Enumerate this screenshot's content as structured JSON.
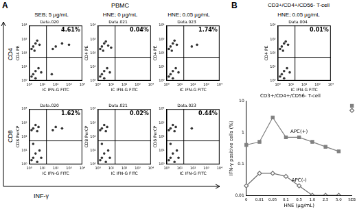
{
  "figure": {
    "panels": [
      {
        "label": "A",
        "title": "PBMC",
        "column_titles": [
          "SEB; 5 µg/mL",
          "HNE; 0 µg/mL",
          "HNE; 0.05 µg/mL"
        ],
        "row_labels": [
          "CD4",
          "CD8"
        ],
        "x_label": "INF-γ"
      },
      {
        "label": "B",
        "title": "CD3+/CD4+/CD56- T-cell",
        "column_titles": [
          "HNE; 0.05 µg/mL"
        ]
      }
    ]
  },
  "chart_data": [
    {
      "type": "scatter",
      "title": "Data.020",
      "x_label": "IC IFN-G FITC",
      "y_label": "CD4 PE",
      "log": true,
      "xlim": [
        1,
        10000
      ],
      "ylim": [
        1,
        10000
      ],
      "xticks": [
        {
          "value": 1,
          "label": "10⁰"
        },
        {
          "value": 10,
          "label": "10¹"
        },
        {
          "value": 100,
          "label": "10²"
        },
        {
          "value": 1000,
          "label": "10³"
        },
        {
          "value": 10000,
          "label": "10⁴"
        }
      ],
      "yticks": [
        {
          "value": 1,
          "label": "10⁰"
        },
        {
          "value": 10,
          "label": "10¹"
        },
        {
          "value": 100,
          "label": "10²"
        },
        {
          "value": 1000,
          "label": "10³"
        },
        {
          "value": 10000,
          "label": "10⁴"
        }
      ],
      "grid": false,
      "color": "#333333",
      "points": [
        [
          2,
          300
        ],
        [
          3,
          500
        ],
        [
          1.5,
          200
        ],
        [
          4,
          800
        ],
        [
          2.5,
          150
        ],
        [
          6,
          400
        ],
        [
          2,
          3
        ],
        [
          3,
          5
        ],
        [
          1.5,
          2
        ],
        [
          5,
          8
        ],
        [
          8,
          4
        ],
        [
          3,
          1.5
        ],
        [
          100,
          300
        ],
        [
          300,
          500
        ],
        [
          60,
          200
        ],
        [
          1000,
          400
        ],
        [
          50,
          3
        ]
      ],
      "gate": {
        "x": 20,
        "y": 50
      },
      "annotations": [
        "4.61%"
      ]
    },
    {
      "type": "scatter",
      "title": "Data.021",
      "x_label": "IC IFN-G FITC",
      "y_label": "CD4 PE",
      "log": true,
      "xlim": [
        1,
        10000
      ],
      "ylim": [
        1,
        10000
      ],
      "xticks": [
        {
          "value": 1,
          "label": "10⁰"
        },
        {
          "value": 10,
          "label": "10¹"
        },
        {
          "value": 100,
          "label": "10²"
        },
        {
          "value": 1000,
          "label": "10³"
        },
        {
          "value": 10000,
          "label": "10⁴"
        }
      ],
      "yticks": [
        {
          "value": 1,
          "label": "10⁰"
        },
        {
          "value": 10,
          "label": "10¹"
        },
        {
          "value": 100,
          "label": "10²"
        },
        {
          "value": 1000,
          "label": "10³"
        },
        {
          "value": 10000,
          "label": "10⁴"
        }
      ],
      "grid": false,
      "color": "#333333",
      "points": [
        [
          2,
          300
        ],
        [
          3,
          500
        ],
        [
          1.5,
          200
        ],
        [
          4,
          700
        ],
        [
          2.5,
          150
        ],
        [
          6,
          350
        ],
        [
          2,
          3
        ],
        [
          3,
          5
        ],
        [
          1.5,
          2
        ],
        [
          5,
          8
        ],
        [
          8,
          4
        ],
        [
          3,
          1.5
        ],
        [
          10,
          250
        ]
      ],
      "gate": {
        "x": 20,
        "y": 50
      },
      "annotations": [
        "0.04%"
      ]
    },
    {
      "type": "scatter",
      "title": "Data.023",
      "x_label": "IC IFN-G FITC",
      "y_label": "CD4 PE",
      "log": true,
      "xlim": [
        1,
        10000
      ],
      "ylim": [
        1,
        10000
      ],
      "xticks": [
        {
          "value": 1,
          "label": "10⁰"
        },
        {
          "value": 10,
          "label": "10¹"
        },
        {
          "value": 100,
          "label": "10²"
        },
        {
          "value": 1000,
          "label": "10³"
        },
        {
          "value": 10000,
          "label": "10⁴"
        }
      ],
      "yticks": [
        {
          "value": 1,
          "label": "10⁰"
        },
        {
          "value": 10,
          "label": "10¹"
        },
        {
          "value": 100,
          "label": "10²"
        },
        {
          "value": 1000,
          "label": "10³"
        },
        {
          "value": 10000,
          "label": "10⁴"
        }
      ],
      "grid": false,
      "color": "#333333",
      "points": [
        [
          2,
          300
        ],
        [
          3,
          500
        ],
        [
          1.5,
          200
        ],
        [
          4,
          800
        ],
        [
          2.5,
          150
        ],
        [
          6,
          400
        ],
        [
          2,
          3
        ],
        [
          3,
          5
        ],
        [
          1.5,
          2
        ],
        [
          5,
          8
        ],
        [
          8,
          4
        ],
        [
          3,
          1.5
        ],
        [
          80,
          300
        ],
        [
          200,
          400
        ]
      ],
      "gate": {
        "x": 20,
        "y": 50
      },
      "annotations": [
        "1.74%"
      ]
    },
    {
      "type": "scatter",
      "title": "Data.020",
      "x_label": "IC IFN-G FITC",
      "y_label": "CD8 PerCP",
      "log": true,
      "xlim": [
        1,
        10000
      ],
      "ylim": [
        1,
        10000
      ],
      "xticks": [
        {
          "value": 1,
          "label": "10⁰"
        },
        {
          "value": 10,
          "label": "10¹"
        },
        {
          "value": 100,
          "label": "10²"
        },
        {
          "value": 1000,
          "label": "10³"
        },
        {
          "value": 10000,
          "label": "10⁴"
        }
      ],
      "yticks": [
        {
          "value": 1,
          "label": "10⁰"
        },
        {
          "value": 10,
          "label": "10¹"
        },
        {
          "value": 100,
          "label": "10²"
        },
        {
          "value": 1000,
          "label": "10³"
        },
        {
          "value": 10000,
          "label": "10⁴"
        }
      ],
      "grid": false,
      "color": "#333333",
      "points": [
        [
          2,
          400
        ],
        [
          3,
          700
        ],
        [
          1.5,
          300
        ],
        [
          5,
          500
        ],
        [
          4,
          250
        ],
        [
          2,
          3
        ],
        [
          3,
          6
        ],
        [
          1.5,
          2
        ],
        [
          6,
          10
        ],
        [
          8,
          3
        ],
        [
          4,
          1.5
        ],
        [
          2,
          30
        ],
        [
          100,
          500
        ],
        [
          300,
          400
        ],
        [
          60,
          300
        ]
      ],
      "gate": {
        "x": 20,
        "y": 50
      },
      "annotations": [
        "1.62%"
      ]
    },
    {
      "type": "scatter",
      "title": "Data.021",
      "x_label": "IC IFN-G FITC",
      "y_label": "CD8 PerCP",
      "log": true,
      "xlim": [
        1,
        10000
      ],
      "ylim": [
        1,
        10000
      ],
      "xticks": [
        {
          "value": 1,
          "label": "10⁰"
        },
        {
          "value": 10,
          "label": "10¹"
        },
        {
          "value": 100,
          "label": "10²"
        },
        {
          "value": 1000,
          "label": "10³"
        },
        {
          "value": 10000,
          "label": "10⁴"
        }
      ],
      "yticks": [
        {
          "value": 1,
          "label": "10⁰"
        },
        {
          "value": 10,
          "label": "10¹"
        },
        {
          "value": 100,
          "label": "10²"
        },
        {
          "value": 1000,
          "label": "10³"
        },
        {
          "value": 10000,
          "label": "10⁴"
        }
      ],
      "grid": false,
      "color": "#333333",
      "points": [
        [
          2,
          400
        ],
        [
          3,
          700
        ],
        [
          1.5,
          300
        ],
        [
          5,
          500
        ],
        [
          4,
          250
        ],
        [
          2,
          3
        ],
        [
          3,
          6
        ],
        [
          1.5,
          2
        ],
        [
          6,
          10
        ],
        [
          8,
          3
        ],
        [
          4,
          1.5
        ],
        [
          2,
          30
        ]
      ],
      "gate": {
        "x": 20,
        "y": 50
      },
      "annotations": [
        "0.02%"
      ]
    },
    {
      "type": "scatter",
      "title": "Data.023",
      "x_label": "IC IFN-G FITC",
      "y_label": "CD8 PerCP",
      "log": true,
      "xlim": [
        1,
        10000
      ],
      "ylim": [
        1,
        10000
      ],
      "xticks": [
        {
          "value": 1,
          "label": "10⁰"
        },
        {
          "value": 10,
          "label": "10¹"
        },
        {
          "value": 100,
          "label": "10²"
        },
        {
          "value": 1000,
          "label": "10³"
        },
        {
          "value": 10000,
          "label": "10⁴"
        }
      ],
      "yticks": [
        {
          "value": 1,
          "label": "10⁰"
        },
        {
          "value": 10,
          "label": "10¹"
        },
        {
          "value": 100,
          "label": "10²"
        },
        {
          "value": 1000,
          "label": "10³"
        },
        {
          "value": 10000,
          "label": "10⁴"
        }
      ],
      "grid": false,
      "color": "#333333",
      "points": [
        [
          2,
          400
        ],
        [
          3,
          700
        ],
        [
          1.5,
          300
        ],
        [
          5,
          500
        ],
        [
          4,
          250
        ],
        [
          2,
          3
        ],
        [
          3,
          6
        ],
        [
          1.5,
          2
        ],
        [
          6,
          10
        ],
        [
          8,
          3
        ],
        [
          4,
          1.5
        ],
        [
          2,
          30
        ],
        [
          80,
          400
        ]
      ],
      "gate": {
        "x": 20,
        "y": 50
      },
      "annotations": [
        "0.44%"
      ]
    },
    {
      "type": "scatter",
      "title": "Data.004",
      "x_label": "IC IFN-G FITC",
      "y_label": "CD4 PE",
      "log": true,
      "xlim": [
        1,
        10000
      ],
      "ylim": [
        1,
        10000
      ],
      "xticks": [
        {
          "value": 1,
          "label": "10⁰"
        },
        {
          "value": 10,
          "label": "10¹"
        },
        {
          "value": 100,
          "label": "10²"
        },
        {
          "value": 1000,
          "label": "10³"
        },
        {
          "value": 10000,
          "label": "10⁴"
        }
      ],
      "yticks": [
        {
          "value": 1,
          "label": "10⁰"
        },
        {
          "value": 10,
          "label": "10¹"
        },
        {
          "value": 100,
          "label": "10²"
        },
        {
          "value": 1000,
          "label": "10³"
        },
        {
          "value": 10000,
          "label": "10⁴"
        }
      ],
      "grid": false,
      "color": "#333333",
      "points": [
        [
          2,
          300
        ],
        [
          3,
          500
        ],
        [
          1.5,
          200
        ],
        [
          4,
          700
        ],
        [
          2.5,
          150
        ],
        [
          6,
          400
        ],
        [
          2,
          3
        ],
        [
          3,
          5
        ],
        [
          1.5,
          2
        ],
        [
          5,
          8
        ],
        [
          8,
          4
        ],
        [
          3,
          1.5
        ]
      ],
      "gate": {
        "x": 20,
        "y": 50
      },
      "annotations": [
        "0.01%"
      ]
    },
    {
      "type": "line",
      "title": "CD3+/CD4+/CD56- T-cell",
      "x_label": "HNE (µg/mL)",
      "y_label": "IFN-γ positive cells (%)",
      "categories": [
        "0",
        "0.01",
        "0.05",
        "0.1",
        "0.5",
        "1.0",
        "2.5",
        "5.0",
        "SEB"
      ],
      "log": "y",
      "ylim": [
        0.01,
        10
      ],
      "yticks": [
        0.01,
        0.1,
        1,
        10
      ],
      "grid": false,
      "series": [
        {
          "name": "APC(+)",
          "color": "#808080",
          "marker": "square",
          "values": [
            0.4,
            0.5,
            3,
            0.7,
            0.7,
            0.5,
            0.35,
            0.25,
            7
          ]
        },
        {
          "name": "APC(-)",
          "color": "#707070",
          "marker": "open_diamond",
          "values": [
            0.02,
            0.05,
            0.05,
            0.04,
            0.02,
            0.01,
            0.01,
            0.01,
            5
          ]
        }
      ]
    }
  ]
}
